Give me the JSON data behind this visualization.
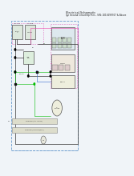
{
  "bg_color": "#f0f4f8",
  "border_color": "#6699cc",
  "title_lines": [
    "Electrical Schematic",
    "Ign Ground Circuit/Op Pres - S/N: 2016499707 & Above"
  ],
  "title_fontsize": 2.5,
  "wire_gray": "#444444",
  "wire_green": "#00bb00",
  "wire_pink": "#ee44aa",
  "wire_blue": "#3366cc",
  "wire_gray2": "#888888",
  "dot_color": "#000000",
  "comp_fill": "#e0e8e0",
  "comp_edge": "#444444",
  "dashed_edge": "#aaaaaa",
  "pink_dashed": "#dd66bb",
  "lw_main": 0.55,
  "lw_thin": 0.4,
  "lw_border": 0.5,
  "fs_tiny": 1.6,
  "fs_small": 1.8,
  "fs_med": 2.0
}
